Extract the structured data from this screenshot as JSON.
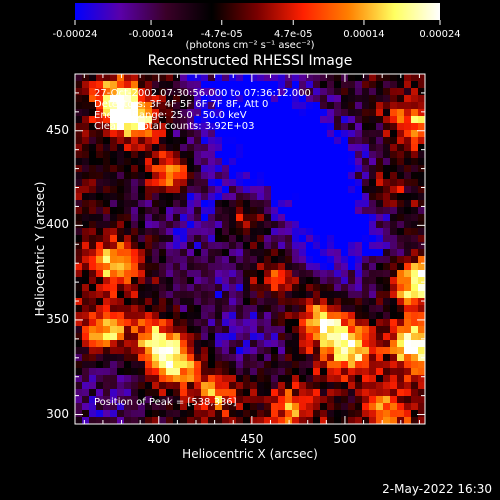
{
  "chart_data": {
    "type": "heatmap",
    "title": "Reconstructed RHESSI Image",
    "xlabel": "Heliocentric X (arcsec)",
    "ylabel": "Heliocentric Y (arcsec)",
    "xlim": [
      355,
      543
    ],
    "ylim": [
      295,
      480
    ],
    "x_ticks": [
      400,
      450,
      500
    ],
    "y_ticks": [
      300,
      350,
      400,
      450
    ],
    "colorbar": {
      "ticks": [
        "-0.00024",
        "-0.00014",
        "-4.7e-05",
        "4.7e-05",
        "0.00014",
        "0.00024"
      ],
      "tick_values": [
        -0.00024,
        -0.00014,
        -4.7e-05,
        4.7e-05,
        0.00014,
        0.00024
      ],
      "range": [
        -0.00024,
        0.00024
      ],
      "units": "(photons cm⁻² s⁻¹ asec⁻²)",
      "colors": [
        "#0000ff",
        "#5a00a8",
        "#3a0028",
        "#000000",
        "#7a0000",
        "#ff2000",
        "#ff8000",
        "#ffff60",
        "#ffffff"
      ]
    },
    "annotations": {
      "time_range": "27-Oct-2002 07:30:56.000 to 07:36:12.000",
      "detectors": "Detectors: 3F 4F 5F 6F 7F 8F, Att 0",
      "energy": "Energy Range: 25.0 - 50.0 keV",
      "method": "Clean     Total counts: 3.92E+03",
      "peak": "Position of Peak = [538,336]"
    },
    "bright_sources": [
      {
        "x": 378,
        "y": 465,
        "level": 0.9
      },
      {
        "x": 406,
        "y": 427,
        "level": 0.85
      },
      {
        "x": 389,
        "y": 455,
        "level": 0.7
      },
      {
        "x": 447,
        "y": 404,
        "level": 0.6
      },
      {
        "x": 520,
        "y": 418,
        "level": 0.55
      },
      {
        "x": 538,
        "y": 370,
        "level": 0.95
      },
      {
        "x": 538,
        "y": 336,
        "level": 1.0
      },
      {
        "x": 502,
        "y": 336,
        "level": 0.9
      },
      {
        "x": 486,
        "y": 350,
        "level": 0.75
      },
      {
        "x": 409,
        "y": 326,
        "level": 0.95
      },
      {
        "x": 399,
        "y": 340,
        "level": 0.7
      },
      {
        "x": 432,
        "y": 312,
        "level": 0.6
      },
      {
        "x": 378,
        "y": 380,
        "level": 0.8
      },
      {
        "x": 372,
        "y": 344,
        "level": 0.75
      },
      {
        "x": 463,
        "y": 372,
        "level": 0.55
      },
      {
        "x": 523,
        "y": 303,
        "level": 0.55
      },
      {
        "x": 470,
        "y": 303,
        "level": 0.5
      },
      {
        "x": 536,
        "y": 455,
        "level": 0.6
      }
    ],
    "dim_regions": [
      {
        "x": 465,
        "y": 445,
        "level": -0.7
      },
      {
        "x": 490,
        "y": 420,
        "level": -0.6
      },
      {
        "x": 420,
        "y": 410,
        "level": -0.45
      },
      {
        "x": 440,
        "y": 470,
        "level": -0.5
      },
      {
        "x": 500,
        "y": 390,
        "level": -0.5
      },
      {
        "x": 440,
        "y": 345,
        "level": -0.4
      },
      {
        "x": 370,
        "y": 310,
        "level": -0.35
      }
    ]
  },
  "footer": {
    "timestamp": "2-May-2022 16:30"
  }
}
